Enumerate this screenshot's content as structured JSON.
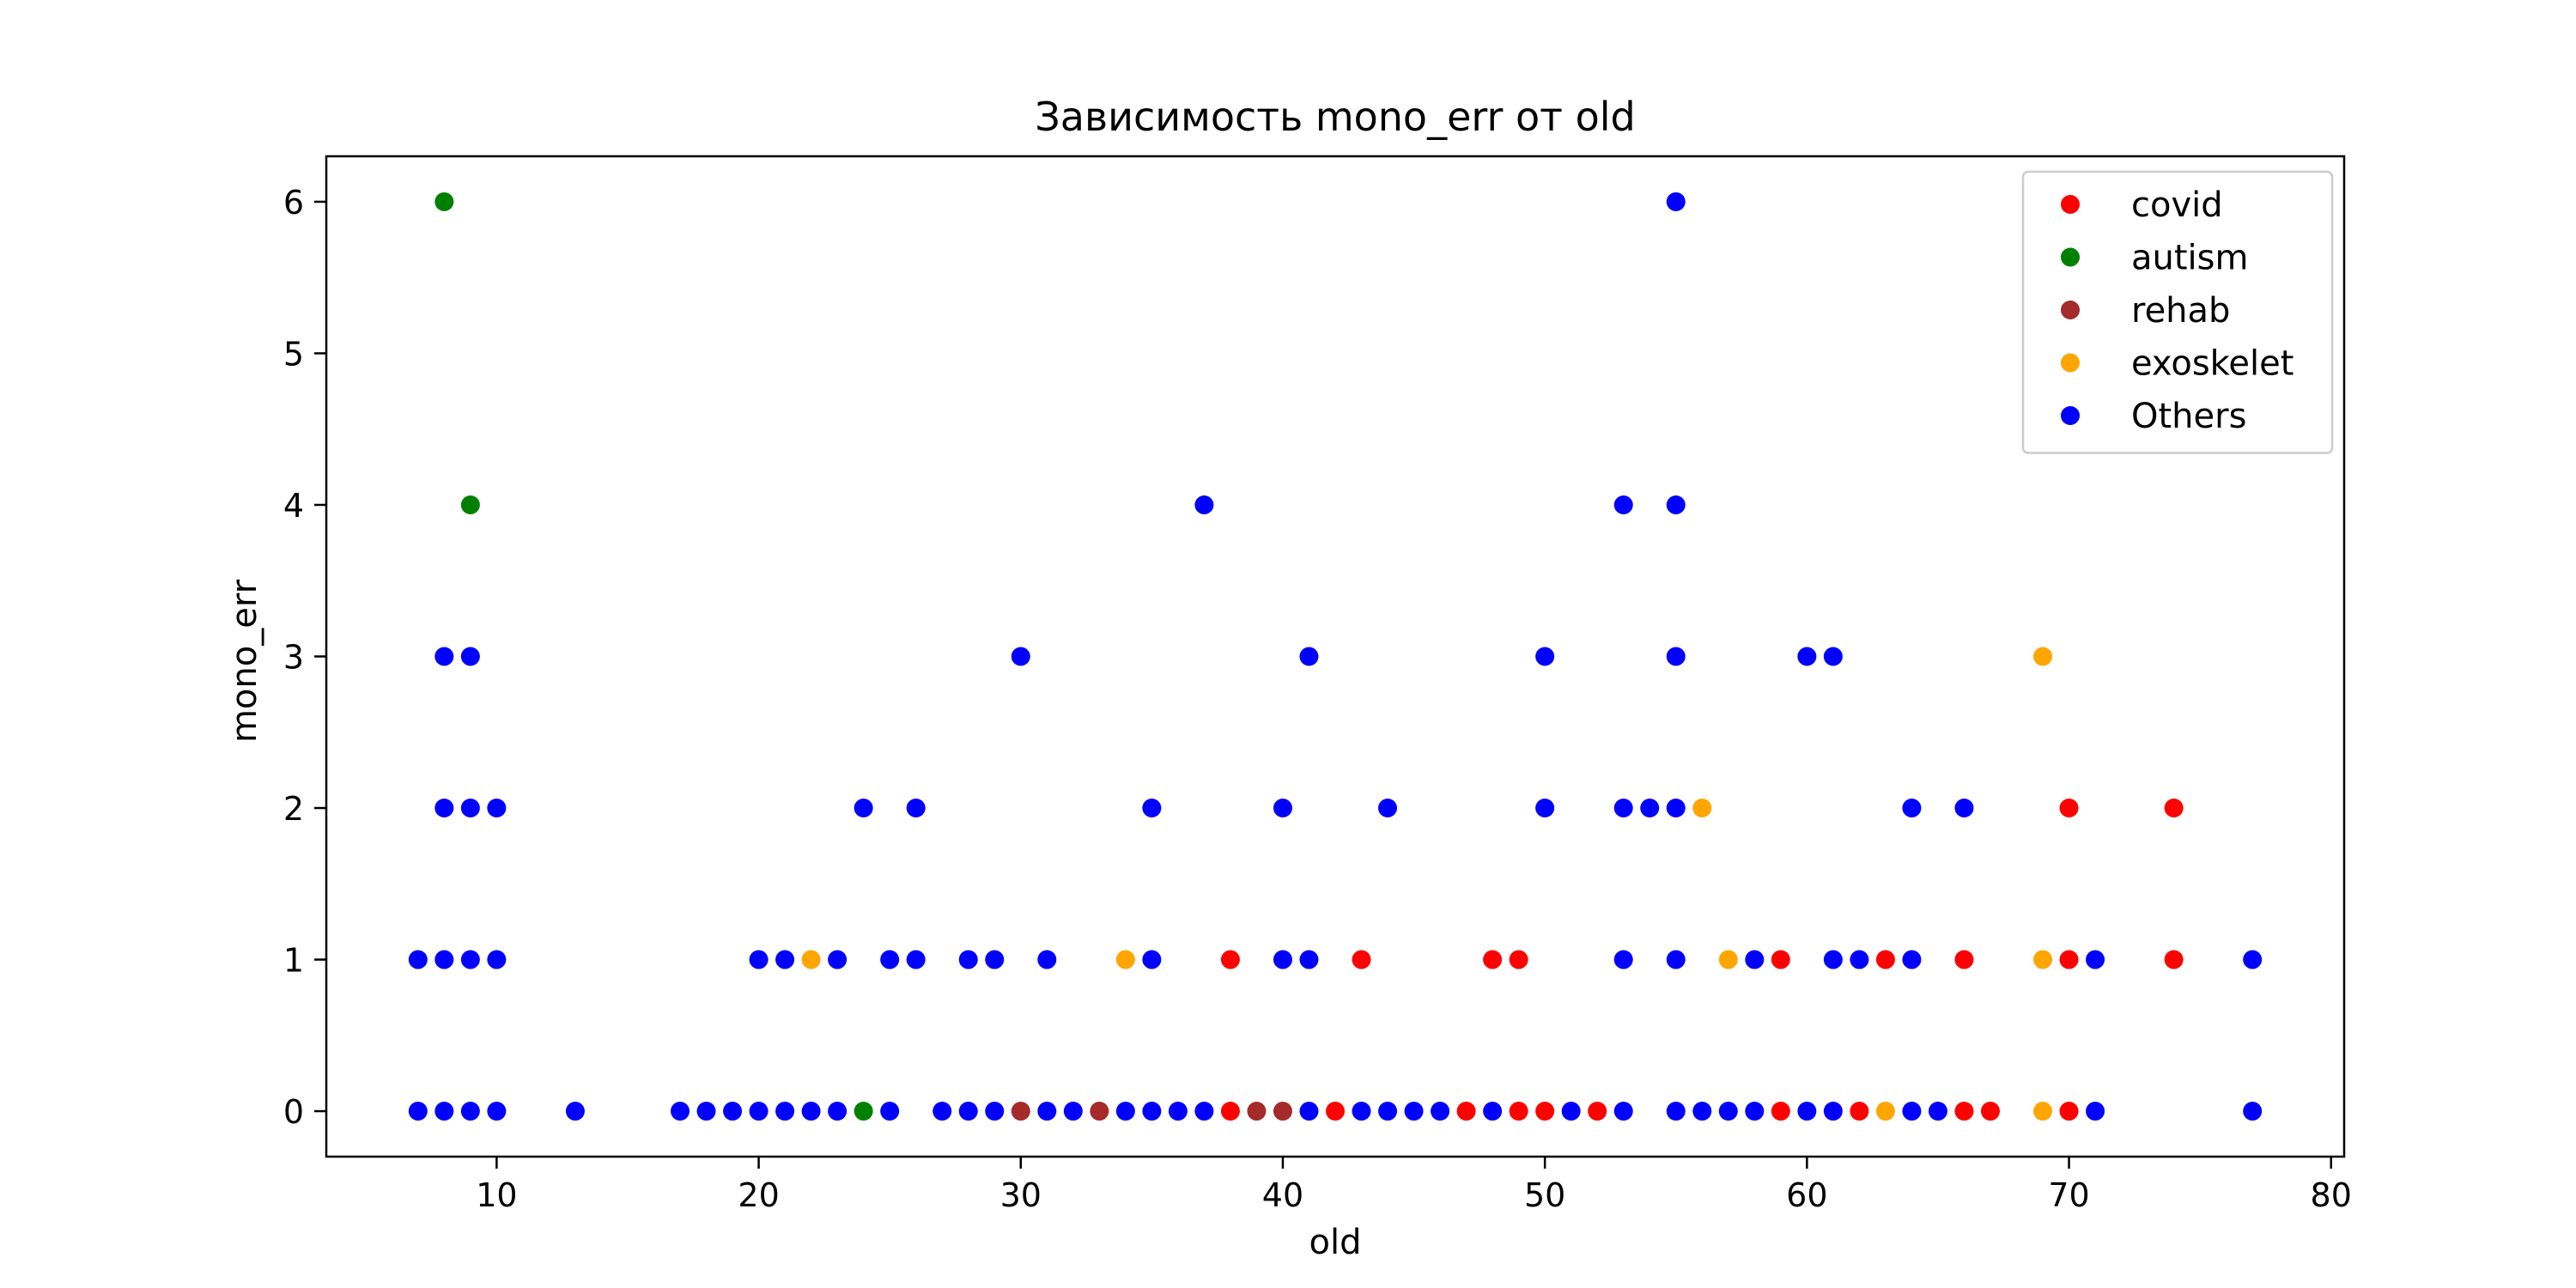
{
  "chart_data": {
    "type": "scatter",
    "title": "Зависимость mono_err от old",
    "xlabel": "old",
    "ylabel": "mono_err",
    "xlim": [
      3.5,
      80.5
    ],
    "ylim": [
      -0.3,
      6.3
    ],
    "xticks": [
      10,
      20,
      30,
      40,
      50,
      60,
      70,
      80
    ],
    "yticks": [
      0,
      1,
      2,
      3,
      4,
      5,
      6
    ],
    "grid": false,
    "legend_position": "top-right",
    "series": [
      {
        "name": "covid",
        "color": "#ff0000",
        "points": [
          [
            38,
            1
          ],
          [
            43,
            1
          ],
          [
            48,
            1
          ],
          [
            49,
            1
          ],
          [
            59,
            1
          ],
          [
            63,
            1
          ],
          [
            66,
            1
          ],
          [
            70,
            1
          ],
          [
            74,
            1
          ],
          [
            70,
            2
          ],
          [
            74,
            2
          ],
          [
            38,
            0
          ],
          [
            42,
            0
          ],
          [
            47,
            0
          ],
          [
            49,
            0
          ],
          [
            50,
            0
          ],
          [
            52,
            0
          ],
          [
            59,
            0
          ],
          [
            62,
            0
          ],
          [
            66,
            0
          ],
          [
            67,
            0
          ],
          [
            70,
            0
          ]
        ]
      },
      {
        "name": "autism",
        "color": "#008000",
        "points": [
          [
            8,
            6
          ],
          [
            9,
            4
          ],
          [
            24,
            0
          ]
        ]
      },
      {
        "name": "rehab",
        "color": "#a52a2a",
        "points": [
          [
            30,
            0
          ],
          [
            33,
            0
          ],
          [
            39,
            0
          ],
          [
            40,
            0
          ]
        ]
      },
      {
        "name": "exoskelet",
        "color": "#ffa500",
        "points": [
          [
            69,
            3
          ],
          [
            56,
            2
          ],
          [
            22,
            1
          ],
          [
            34,
            1
          ],
          [
            57,
            1
          ],
          [
            69,
            1
          ],
          [
            63,
            0
          ],
          [
            69,
            0
          ]
        ]
      },
      {
        "name": "Others",
        "color": "#0000ff",
        "points": [
          [
            55,
            6
          ],
          [
            37,
            4
          ],
          [
            53,
            4
          ],
          [
            55,
            4
          ],
          [
            8,
            3
          ],
          [
            9,
            3
          ],
          [
            30,
            3
          ],
          [
            41,
            3
          ],
          [
            50,
            3
          ],
          [
            55,
            3
          ],
          [
            60,
            3
          ],
          [
            61,
            3
          ],
          [
            8,
            2
          ],
          [
            9,
            2
          ],
          [
            10,
            2
          ],
          [
            24,
            2
          ],
          [
            26,
            2
          ],
          [
            35,
            2
          ],
          [
            40,
            2
          ],
          [
            44,
            2
          ],
          [
            50,
            2
          ],
          [
            53,
            2
          ],
          [
            54,
            2
          ],
          [
            55,
            2
          ],
          [
            64,
            2
          ],
          [
            66,
            2
          ],
          [
            7,
            1
          ],
          [
            8,
            1
          ],
          [
            9,
            1
          ],
          [
            10,
            1
          ],
          [
            20,
            1
          ],
          [
            21,
            1
          ],
          [
            23,
            1
          ],
          [
            25,
            1
          ],
          [
            26,
            1
          ],
          [
            28,
            1
          ],
          [
            29,
            1
          ],
          [
            31,
            1
          ],
          [
            35,
            1
          ],
          [
            40,
            1
          ],
          [
            41,
            1
          ],
          [
            53,
            1
          ],
          [
            55,
            1
          ],
          [
            58,
            1
          ],
          [
            61,
            1
          ],
          [
            62,
            1
          ],
          [
            64,
            1
          ],
          [
            71,
            1
          ],
          [
            77,
            1
          ],
          [
            7,
            0
          ],
          [
            8,
            0
          ],
          [
            9,
            0
          ],
          [
            10,
            0
          ],
          [
            13,
            0
          ],
          [
            17,
            0
          ],
          [
            18,
            0
          ],
          [
            19,
            0
          ],
          [
            20,
            0
          ],
          [
            21,
            0
          ],
          [
            22,
            0
          ],
          [
            23,
            0
          ],
          [
            25,
            0
          ],
          [
            27,
            0
          ],
          [
            28,
            0
          ],
          [
            29,
            0
          ],
          [
            31,
            0
          ],
          [
            32,
            0
          ],
          [
            34,
            0
          ],
          [
            35,
            0
          ],
          [
            36,
            0
          ],
          [
            37,
            0
          ],
          [
            41,
            0
          ],
          [
            43,
            0
          ],
          [
            44,
            0
          ],
          [
            45,
            0
          ],
          [
            46,
            0
          ],
          [
            48,
            0
          ],
          [
            51,
            0
          ],
          [
            53,
            0
          ],
          [
            55,
            0
          ],
          [
            56,
            0
          ],
          [
            57,
            0
          ],
          [
            58,
            0
          ],
          [
            60,
            0
          ],
          [
            61,
            0
          ],
          [
            64,
            0
          ],
          [
            65,
            0
          ],
          [
            71,
            0
          ],
          [
            77,
            0
          ]
        ]
      }
    ]
  }
}
